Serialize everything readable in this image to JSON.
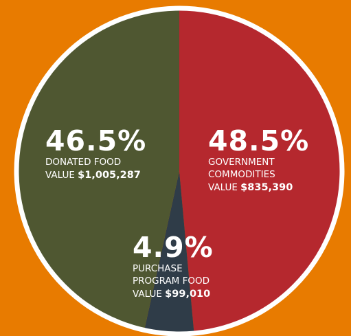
{
  "chart_data": {
    "type": "pie",
    "categories": [
      "GOVERNMENT COMMODITIES",
      "PURCHASE PROGRAM FOOD",
      "DONATED FOOD"
    ],
    "values": [
      48.5,
      4.9,
      46.5
    ],
    "value_labels": [
      "48.5%",
      "4.9%",
      "46.5%"
    ],
    "amount_prefix": "VALUE",
    "amount_labels": [
      "$835,390",
      "$99,010",
      "$1,005,287"
    ],
    "colors": [
      "#b5282e",
      "#2f3c48",
      "#4f5731"
    ]
  }
}
